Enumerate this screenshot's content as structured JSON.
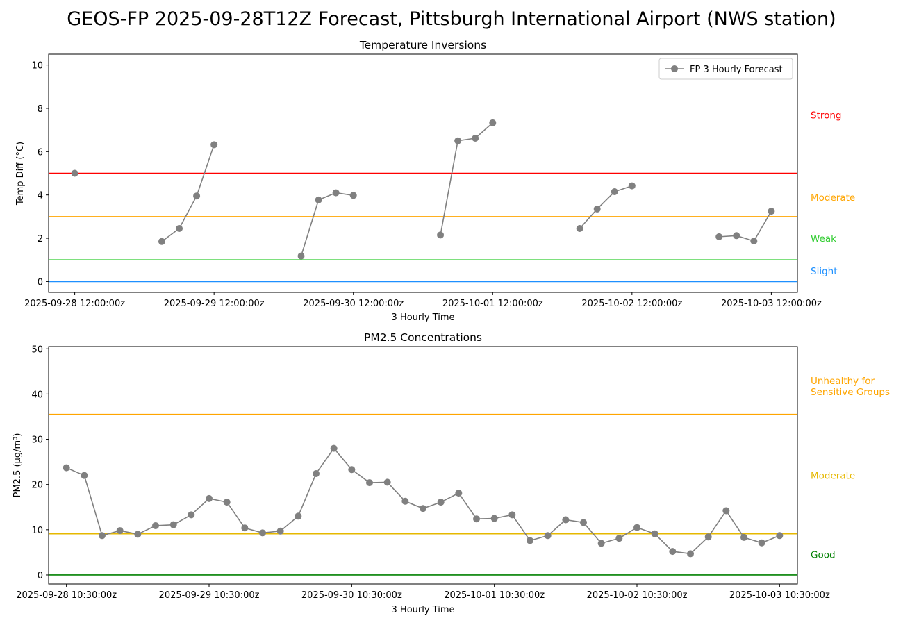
{
  "page": {
    "title": "GEOS-FP 2025-09-28T12Z Forecast, Pittsburgh International Airport (NWS station)"
  },
  "chart_data": [
    {
      "type": "line",
      "title": "Temperature Inversions",
      "xlabel": "3 Hourly Time",
      "ylabel": "Temp Diff (°C)",
      "ylim": [
        -0.5,
        10.5
      ],
      "yticks": [
        0,
        2,
        4,
        6,
        8,
        10
      ],
      "xlim": [
        -1.5,
        41.5
      ],
      "xticks": [
        0,
        8,
        16,
        24,
        32,
        40
      ],
      "xtick_labels": [
        "2025-09-28 12:00:00z",
        "2025-09-29 12:00:00z",
        "2025-09-30 12:00:00z",
        "2025-10-01 12:00:00z",
        "2025-10-02 12:00:00z",
        "2025-10-03 12:00:00z"
      ],
      "legend": {
        "position": "top-right",
        "entries": [
          "FP 3 Hourly Forecast"
        ]
      },
      "series": [
        {
          "name": "FP 3 Hourly Forecast",
          "color": "#808080",
          "x": [
            0,
            1,
            2,
            3,
            4,
            5,
            6,
            7,
            8,
            9,
            10,
            11,
            12,
            13,
            14,
            15,
            16,
            17,
            18,
            19,
            20,
            21,
            22,
            23,
            24,
            25,
            26,
            27,
            28,
            29,
            30,
            31,
            32,
            33,
            34,
            35,
            36,
            37,
            38,
            39,
            40
          ],
          "values": [
            5.0,
            null,
            null,
            null,
            null,
            1.85,
            2.45,
            3.95,
            6.32,
            null,
            null,
            null,
            null,
            1.18,
            3.77,
            4.1,
            3.98,
            null,
            null,
            null,
            null,
            2.15,
            6.5,
            6.62,
            7.33,
            null,
            null,
            null,
            null,
            2.45,
            3.35,
            4.15,
            4.42,
            null,
            null,
            null,
            null,
            2.07,
            2.12,
            1.87,
            3.25
          ]
        }
      ],
      "threshold_lines": [
        {
          "label": "Strong",
          "value": 5,
          "color": "#ff0000",
          "label_value": 7.7
        },
        {
          "label": "Moderate",
          "value": 3,
          "color": "#ffa500",
          "label_value": 3.9
        },
        {
          "label": "Weak",
          "value": 1,
          "color": "#32cd32",
          "label_value": 2.0
        },
        {
          "label": "Slight",
          "value": 0,
          "color": "#1e90ff",
          "label_value": 0.5
        }
      ]
    },
    {
      "type": "line",
      "title": "PM2.5 Concentrations",
      "xlabel": "3 Hourly Time",
      "ylabel": "PM2.5 (μg/m³)",
      "ylim": [
        -2,
        50.5
      ],
      "yticks": [
        0,
        10,
        20,
        30,
        40,
        50
      ],
      "xlim": [
        -1,
        41
      ],
      "xticks": [
        0,
        8,
        16,
        24,
        32,
        40
      ],
      "xtick_labels": [
        "2025-09-28 10:30:00z",
        "2025-09-29 10:30:00z",
        "2025-09-30 10:30:00z",
        "2025-10-01 10:30:00z",
        "2025-10-02 10:30:00z",
        "2025-10-03 10:30:00z"
      ],
      "series": [
        {
          "color": "#808080",
          "x": [
            0,
            1,
            2,
            3,
            4,
            5,
            6,
            7,
            8,
            9,
            10,
            11,
            12,
            13,
            14,
            15,
            16,
            17,
            18,
            19,
            20,
            21,
            22,
            23,
            24,
            25,
            26,
            27,
            28,
            29,
            30,
            31,
            32,
            33,
            34,
            35,
            36,
            37,
            38,
            39,
            40
          ],
          "values": [
            23.7,
            22.0,
            8.7,
            9.8,
            9.0,
            10.9,
            11.1,
            13.3,
            16.9,
            16.1,
            10.4,
            9.3,
            9.7,
            13.0,
            22.4,
            28.0,
            23.3,
            20.4,
            20.5,
            16.3,
            14.7,
            16.1,
            18.1,
            12.4,
            12.5,
            13.3,
            7.6,
            8.7,
            12.2,
            11.6,
            7.0,
            8.1,
            10.5,
            9.1,
            5.2,
            4.7,
            8.4,
            14.2,
            8.3,
            7.1,
            8.7
          ]
        }
      ],
      "threshold_lines": [
        {
          "label": "Unhealthy for Sensitive Groups",
          "label_lines": [
            "Unhealthy for",
            "Sensitive Groups"
          ],
          "value": 35.5,
          "color": "#ffa500",
          "label_value": 43.0
        },
        {
          "label": "Moderate",
          "value": 9.1,
          "color": "#e6b800",
          "label_value": 22.0
        },
        {
          "label": "Good",
          "value": 0,
          "color": "#008000",
          "label_value": 4.5
        }
      ]
    }
  ]
}
